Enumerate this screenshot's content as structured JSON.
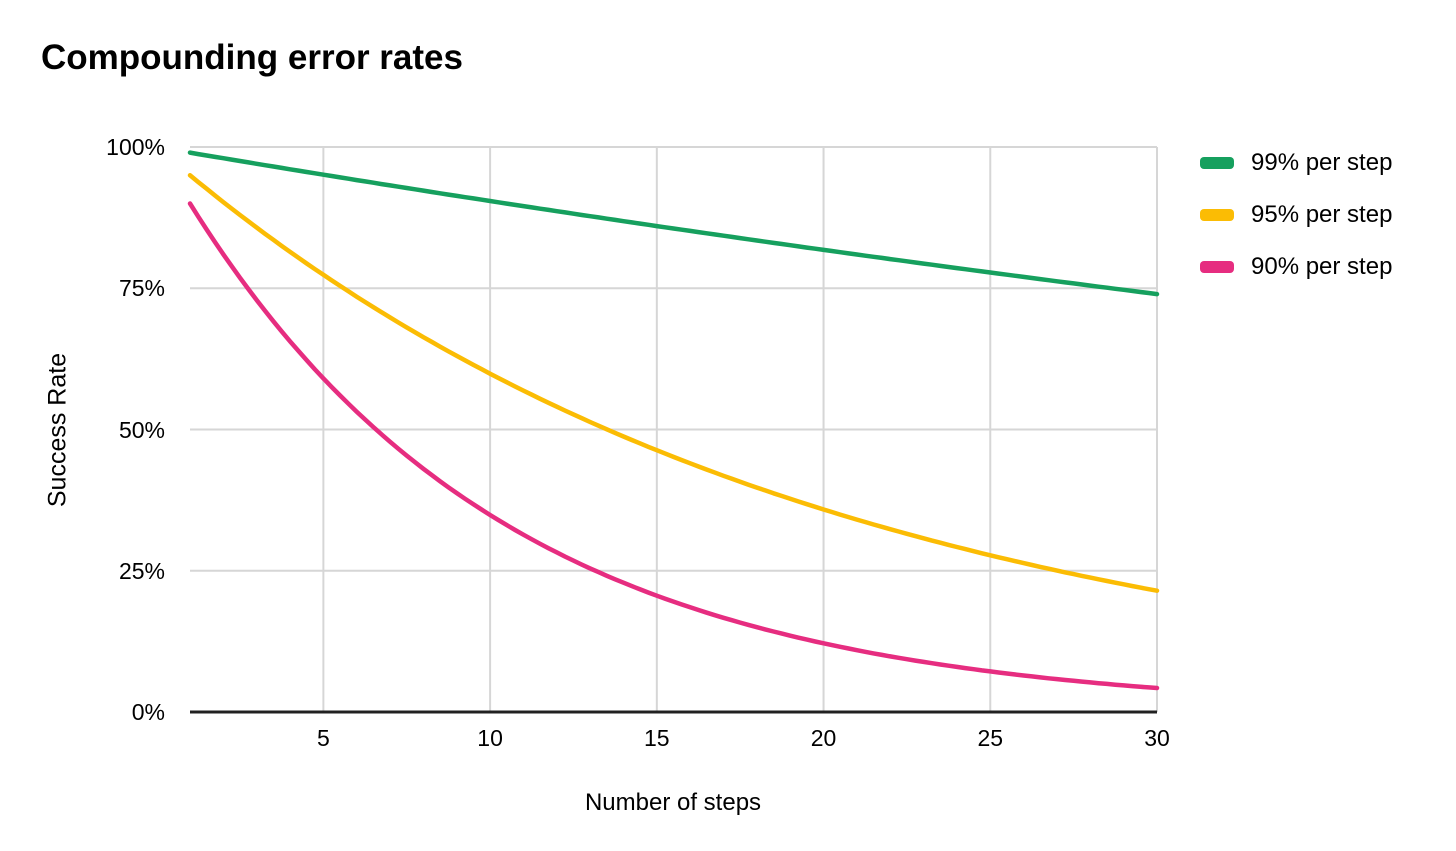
{
  "chart_data": {
    "type": "line",
    "title": "Compounding error rates",
    "xlabel": "Number of steps",
    "ylabel": "Success Rate",
    "x": [
      1,
      2,
      3,
      4,
      5,
      6,
      7,
      8,
      9,
      10,
      11,
      12,
      13,
      14,
      15,
      16,
      17,
      18,
      19,
      20,
      21,
      22,
      23,
      24,
      25,
      26,
      27,
      28,
      29,
      30
    ],
    "x_ticks": [
      5,
      10,
      15,
      20,
      25,
      30
    ],
    "y_ticks": [
      0,
      25,
      50,
      75,
      100
    ],
    "y_tick_suffix": "%",
    "xlim": [
      1,
      30
    ],
    "ylim": [
      0,
      100
    ],
    "grid": true,
    "legend_position": "right",
    "series": [
      {
        "name": "99% per step",
        "color": "#16A05E",
        "per_step_rate": 0.99,
        "values": [
          99,
          98,
          97,
          96.1,
          95.1,
          94.1,
          93.2,
          92.3,
          91.4,
          90.4,
          89.5,
          88.6,
          87.8,
          86.9,
          86,
          85.1,
          84.3,
          83.5,
          82.6,
          81.8,
          81,
          80.2,
          79.4,
          78.6,
          77.8,
          77,
          76.2,
          75.5,
          74.7,
          74
        ]
      },
      {
        "name": "95% per step",
        "color": "#FBBC04",
        "per_step_rate": 0.95,
        "values": [
          95,
          90.3,
          85.7,
          81.5,
          77.4,
          73.5,
          69.8,
          66.3,
          63,
          59.9,
          56.9,
          54,
          51.3,
          48.8,
          46.3,
          44,
          41.8,
          39.7,
          37.7,
          35.8,
          34.1,
          32.4,
          30.7,
          29.2,
          27.7,
          26.4,
          25,
          23.8,
          22.6,
          21.5
        ]
      },
      {
        "name": "90% per step",
        "color": "#E62D80",
        "per_step_rate": 0.9,
        "values": [
          90,
          81,
          72.9,
          65.6,
          59,
          53.1,
          47.8,
          43.1,
          38.7,
          34.9,
          31.4,
          28.2,
          25.4,
          22.9,
          20.6,
          18.5,
          16.7,
          15,
          13.5,
          12.2,
          10.9,
          9.8,
          8.9,
          8,
          7.2,
          6.5,
          5.8,
          5.2,
          4.7,
          4.2
        ]
      }
    ]
  },
  "colors": {
    "background": "#ffffff",
    "grid_line": "#d6d6d6",
    "axis_line": "#212121",
    "text": "#000000"
  }
}
